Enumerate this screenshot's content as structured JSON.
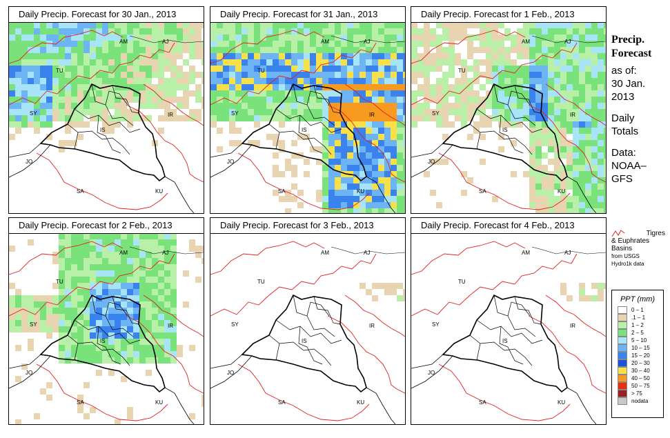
{
  "panels": [
    {
      "title": "Daily Precip. Forecast for  30 Jan., 2013",
      "intensity": "medium-west"
    },
    {
      "title": "Daily Precip. Forecast for  31 Jan., 2013",
      "intensity": "heavy"
    },
    {
      "title": "Daily Precip. Forecast for  1 Feb., 2013",
      "intensity": "medium-east"
    },
    {
      "title": "Daily Precip. Forecast for  2 Feb., 2013",
      "intensity": "medium-center"
    },
    {
      "title": "Daily Precip. Forecast for  3 Feb., 2013",
      "intensity": "none"
    },
    {
      "title": "Daily Precip. Forecast for  4 Feb., 2013",
      "intensity": "none"
    }
  ],
  "map_labels": {
    "am": "AM",
    "aj": "AJ",
    "tu": "TU",
    "sy": "SY",
    "ir": "IR",
    "jo": "JO",
    "sa": "SA",
    "ku": "KU",
    "is": "IS"
  },
  "side": {
    "title_line1": "Precip.",
    "title_line2": "Forecast",
    "asof": "as of:",
    "date_line1": "30 Jan.",
    "date_line2": "2013",
    "totals_line1": "Daily",
    "totals_line2": "Totals",
    "data_line1": "Data:",
    "data_line2": "NOAA–",
    "data_line3": "GFS"
  },
  "basin_legend": {
    "line1": "Tigres",
    "line2": "& Euphrates",
    "line3": "Basins",
    "line4": "from USGS",
    "line5": "Hydro1k data"
  },
  "legend": {
    "title": "PPT (mm)",
    "classes": [
      {
        "label": "0 – 1",
        "color": "#ffffff"
      },
      {
        "label": ".1 – 1",
        "color": "#e8d4b0"
      },
      {
        "label": "1 – 2",
        "color": "#b8f0a8"
      },
      {
        "label": "2 – 5",
        "color": "#7ae27a"
      },
      {
        "label": "5 – 10",
        "color": "#a8e4f8"
      },
      {
        "label": "10 – 15",
        "color": "#6cb4f4"
      },
      {
        "label": "15 – 20",
        "color": "#3a82ee"
      },
      {
        "label": "20 – 30",
        "color": "#1a52d8"
      },
      {
        "label": "30 – 40",
        "color": "#f8e048"
      },
      {
        "label": "40 – 50",
        "color": "#f89a20"
      },
      {
        "label": "50 – 75",
        "color": "#e83010"
      },
      {
        "label": "> 75",
        "color": "#9a2020"
      },
      {
        "label": "nodata",
        "color": "#c8c8c8"
      }
    ]
  }
}
